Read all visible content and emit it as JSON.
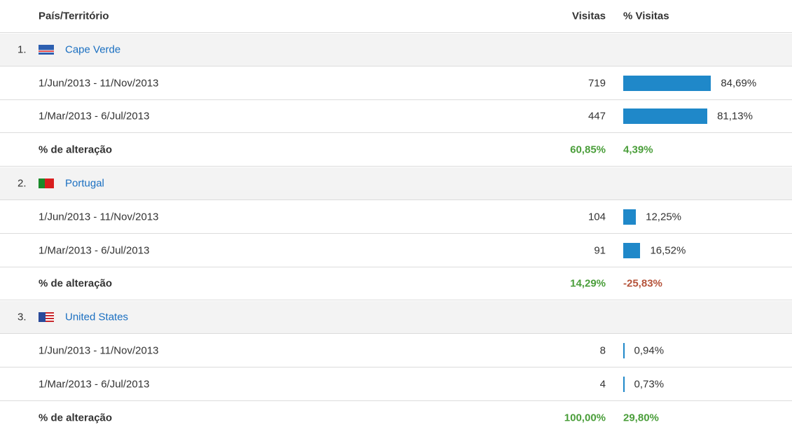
{
  "header": {
    "columns": [
      "País/Território",
      "Visitas",
      "% Visitas"
    ]
  },
  "groups": [
    {
      "rank": "1.",
      "country": "Cape Verde",
      "rows": [
        {
          "period": "1/Jun/2013 - 11/Nov/2013",
          "visits": 719,
          "share": {
            "value": 84.69,
            "label": "84,69%"
          }
        },
        {
          "period": "1/Mar/2013 - 6/Jul/2013",
          "visits": 447,
          "share": {
            "value": 81.13,
            "label": "81,13%"
          }
        }
      ],
      "change": {
        "label": "% de alteração",
        "visits": "60,85%",
        "share": "4,39%"
      }
    },
    {
      "rank": "2.",
      "country": "Portugal",
      "rows": [
        {
          "period": "1/Jun/2013 - 11/Nov/2013",
          "visits": 104,
          "share": {
            "value": 12.25,
            "label": "12,25%"
          }
        },
        {
          "period": "1/Mar/2013 - 6/Jul/2013",
          "visits": 91,
          "share": {
            "value": 16.52,
            "label": "16,52%"
          }
        }
      ],
      "change": {
        "label": "% de alteração",
        "visits": "14,29%",
        "share": "-25,83%"
      }
    },
    {
      "rank": "3.",
      "country": "United States",
      "rows": [
        {
          "period": "1/Jun/2013 - 11/Nov/2013",
          "visits": 8,
          "share": {
            "value": 0.94,
            "label": "0,94%"
          }
        },
        {
          "period": "1/Mar/2013 - 6/Jul/2013",
          "visits": 4,
          "share": {
            "value": 0.73,
            "label": "0,73%"
          }
        }
      ],
      "change": {
        "label": "% de alteração",
        "visits": "100,00%",
        "share": "29,80%"
      }
    }
  ]
}
